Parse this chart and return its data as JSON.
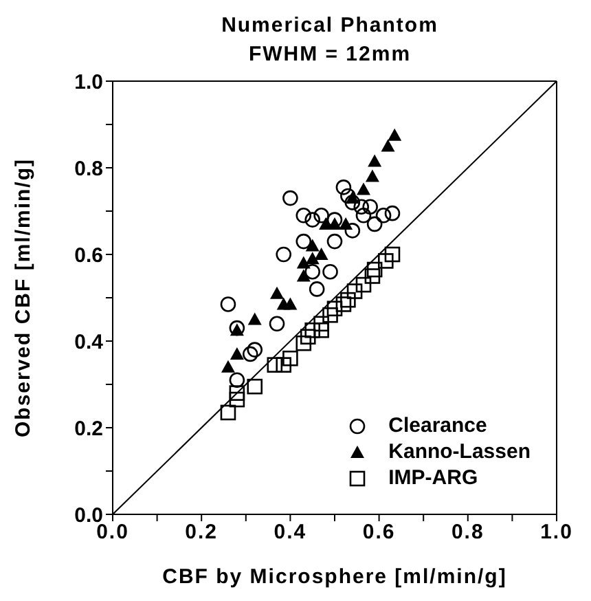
{
  "chart_data": {
    "type": "scatter",
    "title": "Numerical Phantom",
    "subtitle": "FWHM = 12mm",
    "xlabel": "CBF by Microsphere [ml/min/g]",
    "ylabel": "Observed CBF [ml/min/g]",
    "xlim": [
      0,
      1
    ],
    "ylim": [
      0,
      1
    ],
    "xticks": [
      {
        "value": 0,
        "label": "0.0"
      },
      {
        "value": 0.1,
        "label": null
      },
      0.2,
      {
        "value": 0.3,
        "label": null
      },
      0.4,
      {
        "value": 0.5,
        "label": null
      },
      0.6,
      {
        "value": 0.7,
        "label": null
      },
      0.8,
      {
        "value": 0.9,
        "label": null
      },
      {
        "value": 1,
        "label": "1.0"
      }
    ],
    "yticks": [
      {
        "value": 0,
        "label": "0.0"
      },
      {
        "value": 0.1,
        "label": null
      },
      0.2,
      {
        "value": 0.3,
        "label": null
      },
      0.4,
      {
        "value": 0.5,
        "label": null
      },
      0.6,
      {
        "value": 0.7,
        "label": null
      },
      0.8,
      {
        "value": 0.9,
        "label": null
      },
      {
        "value": 1,
        "label": "1.0"
      }
    ],
    "grid": false,
    "legend": "bottom right",
    "series": [
      {
        "name": "Clearance",
        "color": "#000000",
        "marker": "circle",
        "x": [
          0.26,
          0.28,
          0.28,
          0.31,
          0.32,
          0.37,
          0.385,
          0.4,
          0.43,
          0.43,
          0.45,
          0.47,
          0.45,
          0.46,
          0.49,
          0.5,
          0.5,
          0.52,
          0.53,
          0.54,
          0.54,
          0.56,
          0.58,
          0.565,
          0.59,
          0.61,
          0.63
        ],
        "values": [
          0.485,
          0.43,
          0.31,
          0.37,
          0.38,
          0.44,
          0.6,
          0.73,
          0.69,
          0.63,
          0.68,
          0.69,
          0.56,
          0.52,
          0.56,
          0.63,
          0.68,
          0.755,
          0.735,
          0.72,
          0.655,
          0.71,
          0.71,
          0.69,
          0.67,
          0.69,
          0.695
        ]
      },
      {
        "name": "Kanno-Lassen",
        "color": "#000000",
        "marker": "triangle",
        "x": [
          0.26,
          0.28,
          0.28,
          0.32,
          0.37,
          0.385,
          0.4,
          0.43,
          0.43,
          0.45,
          0.45,
          0.47,
          0.48,
          0.5,
          0.525,
          0.54,
          0.565,
          0.585,
          0.59,
          0.62,
          0.635
        ],
        "values": [
          0.34,
          0.37,
          0.425,
          0.45,
          0.51,
          0.485,
          0.485,
          0.58,
          0.55,
          0.62,
          0.59,
          0.6,
          0.67,
          0.67,
          0.67,
          0.73,
          0.75,
          0.78,
          0.815,
          0.85,
          0.875
        ]
      },
      {
        "name": "IMP-ARG",
        "color": "#000000",
        "marker": "square",
        "x": [
          0.26,
          0.28,
          0.28,
          0.32,
          0.365,
          0.385,
          0.4,
          0.43,
          0.44,
          0.45,
          0.47,
          0.47,
          0.49,
          0.5,
          0.52,
          0.53,
          0.545,
          0.565,
          0.585,
          0.59,
          0.615,
          0.63
        ],
        "values": [
          0.235,
          0.265,
          0.28,
          0.295,
          0.345,
          0.345,
          0.36,
          0.395,
          0.41,
          0.425,
          0.425,
          0.44,
          0.46,
          0.475,
          0.485,
          0.495,
          0.515,
          0.53,
          0.55,
          0.565,
          0.585,
          0.6
        ]
      },
      {
        "type": "line",
        "color": "#000000",
        "marker": "none",
        "x": [
          0,
          1
        ],
        "values": [
          0,
          1
        ]
      }
    ]
  }
}
